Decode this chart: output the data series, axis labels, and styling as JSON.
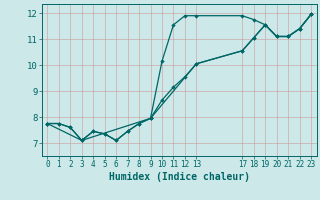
{
  "xlabel": "Humidex (Indice chaleur)",
  "bg_color": "#cce8e8",
  "grid_color": "#cc9999",
  "line_color": "#006666",
  "xlim": [
    -0.5,
    23.5
  ],
  "ylim": [
    6.5,
    12.35
  ],
  "xticks": [
    0,
    1,
    2,
    3,
    4,
    5,
    6,
    7,
    8,
    9,
    10,
    11,
    12,
    13,
    17,
    18,
    19,
    20,
    21,
    22,
    23
  ],
  "yticks": [
    7,
    8,
    9,
    10,
    11,
    12
  ],
  "line1_x": [
    0,
    1,
    2,
    3,
    4,
    5,
    6,
    7,
    8,
    9,
    10,
    11,
    12,
    13,
    17,
    18,
    19,
    20,
    21,
    22,
    23
  ],
  "line1_y": [
    7.75,
    7.75,
    7.6,
    7.1,
    7.45,
    7.35,
    7.1,
    7.45,
    7.75,
    7.95,
    10.15,
    11.55,
    11.9,
    11.9,
    11.9,
    11.75,
    11.55,
    11.1,
    11.1,
    11.4,
    11.95
  ],
  "line2_x": [
    0,
    1,
    2,
    3,
    4,
    5,
    6,
    7,
    8,
    9,
    10,
    11,
    12,
    13,
    17,
    18,
    19,
    20,
    21,
    22,
    23
  ],
  "line2_y": [
    7.75,
    7.75,
    7.6,
    7.1,
    7.45,
    7.35,
    7.1,
    7.45,
    7.75,
    7.95,
    8.65,
    9.15,
    9.55,
    10.05,
    10.55,
    11.05,
    11.55,
    11.1,
    11.1,
    11.4,
    11.95
  ],
  "line3_x": [
    0,
    3,
    9,
    13,
    17,
    18,
    19,
    20,
    21,
    22,
    23
  ],
  "line3_y": [
    7.75,
    7.1,
    7.95,
    10.05,
    10.55,
    11.05,
    11.55,
    11.1,
    11.1,
    11.4,
    11.95
  ]
}
